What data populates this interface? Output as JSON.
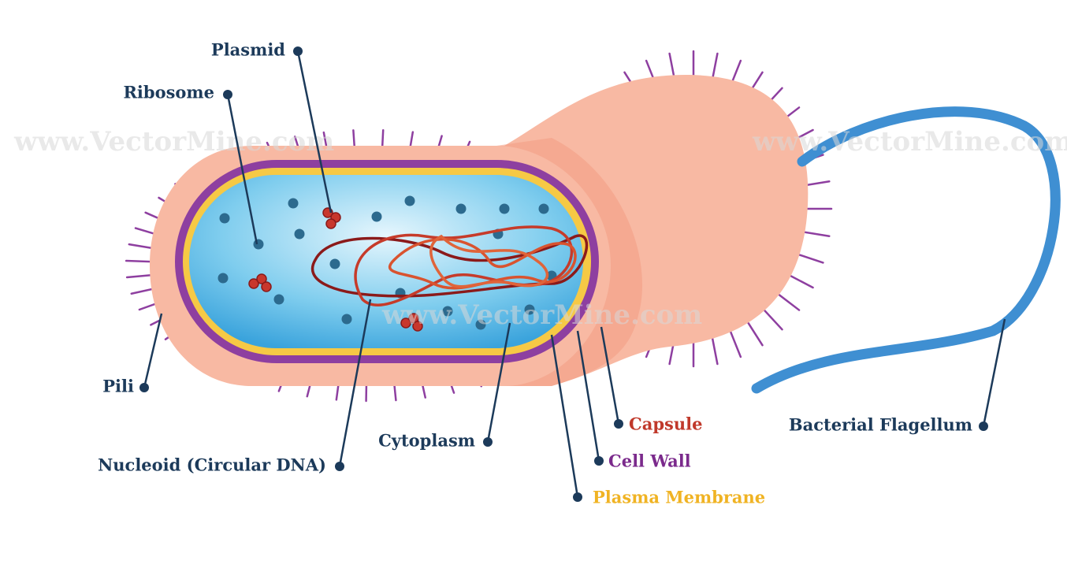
{
  "labels": [
    "Plasmid",
    "Ribosome",
    "Pili",
    "Nucleoid (Circular DNA)",
    "Cytoplasm",
    "Capsule",
    "Cell Wall",
    "Plasma Membrane",
    "Bacterial Flagellum"
  ],
  "watermarks": [
    "www.VectorMine.com",
    "www.VectorMine.com",
    "www.VectorMine.com"
  ]
}
